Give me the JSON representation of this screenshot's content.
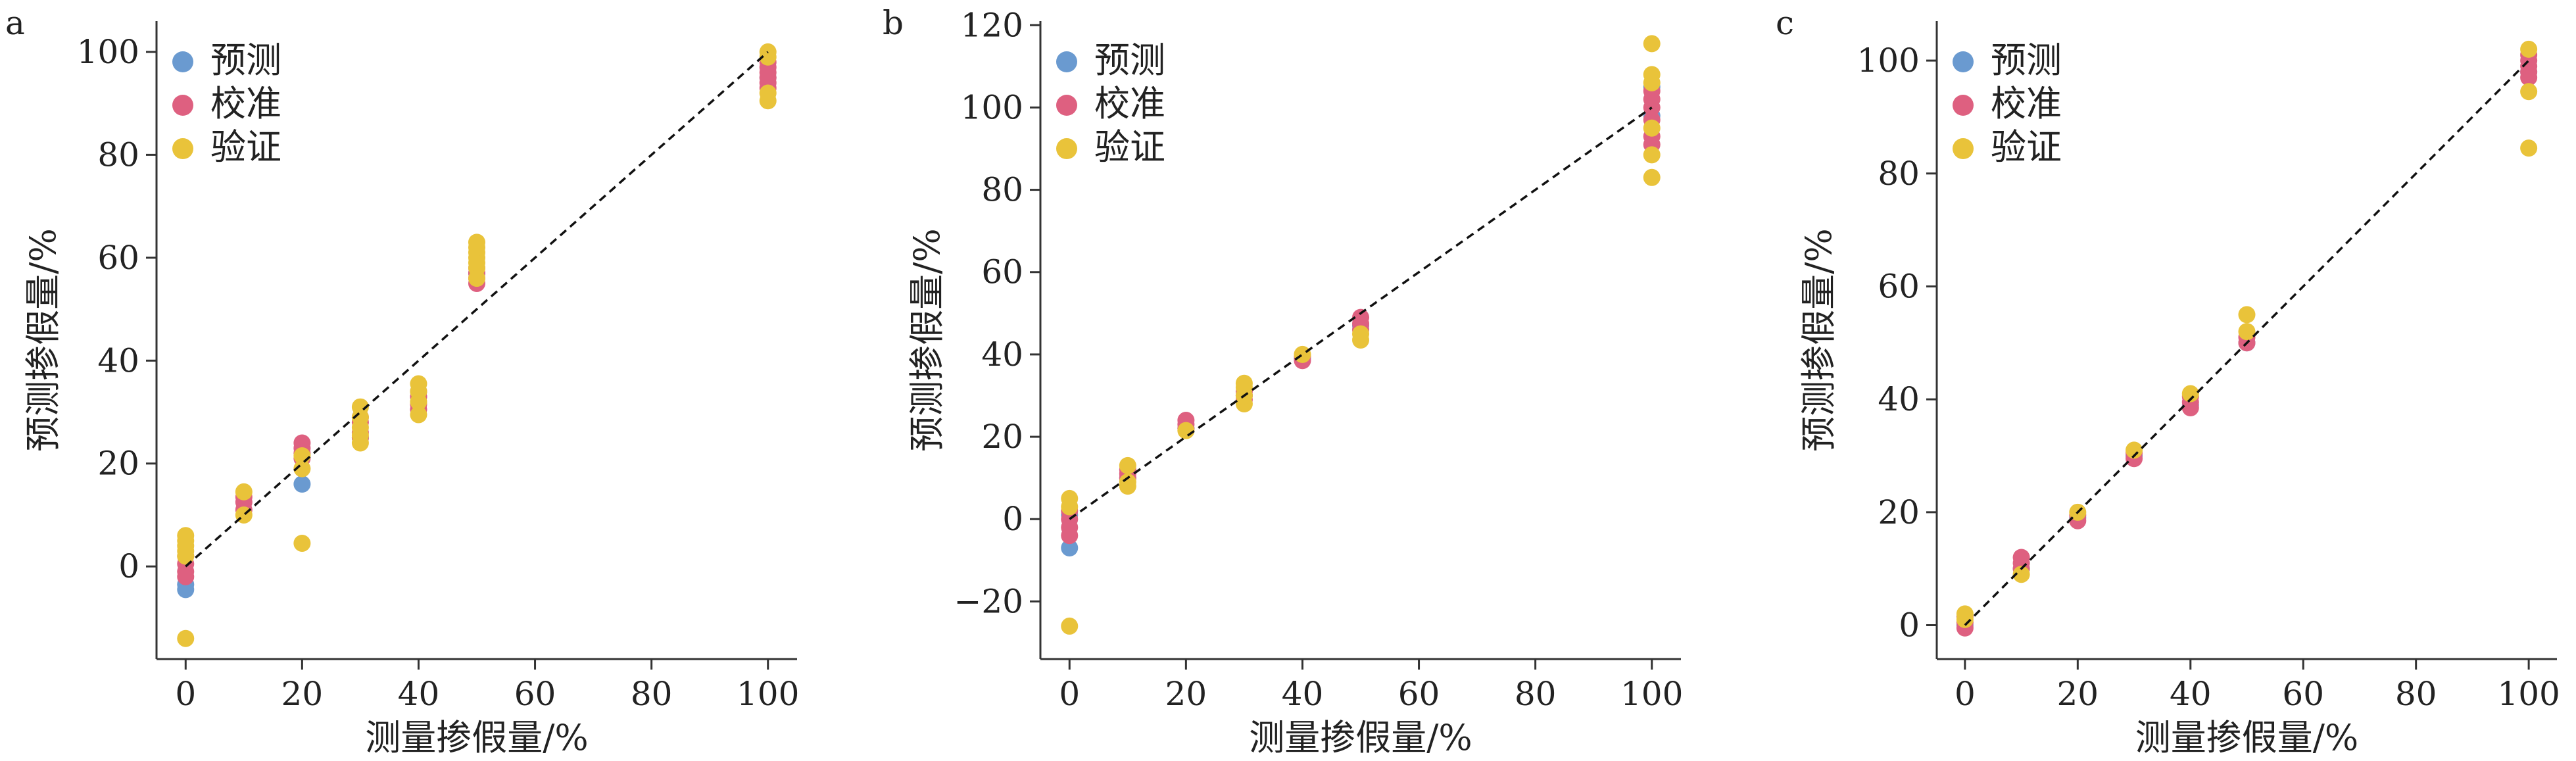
{
  "figure": {
    "legend_labels": [
      "预测",
      "校准",
      "验证"
    ],
    "colors": {
      "预测": "#6a9ad0",
      "校准": "#de6080",
      "验证": "#e9c33a"
    }
  },
  "chart_data": [
    {
      "panel": "a",
      "type": "scatter",
      "xlabel": "测量掺假量/%",
      "ylabel": "预测掺假量/%",
      "xlim": [
        -5,
        105
      ],
      "ylim": [
        -18,
        106
      ],
      "xticks": [
        0,
        20,
        40,
        60,
        80,
        100
      ],
      "yticks": [
        0,
        20,
        40,
        60,
        80,
        100
      ],
      "reference_line": [
        [
          0,
          0
        ],
        [
          100,
          100
        ]
      ],
      "series": [
        {
          "name": "预测",
          "points": [
            [
              0,
              -4.5
            ],
            [
              0,
              -3.5
            ],
            [
              20,
              16
            ],
            [
              30,
              25
            ],
            [
              40,
              33
            ],
            [
              50,
              57
            ],
            [
              100,
              95
            ]
          ]
        },
        {
          "name": "校准",
          "points": [
            [
              0,
              -1
            ],
            [
              0,
              0.5
            ],
            [
              0,
              2
            ],
            [
              0,
              -2
            ],
            [
              10,
              11
            ],
            [
              10,
              12.5
            ],
            [
              10,
              13.5
            ],
            [
              20,
              21
            ],
            [
              20,
              22
            ],
            [
              20,
              23
            ],
            [
              20,
              24
            ],
            [
              30,
              25
            ],
            [
              30,
              26
            ],
            [
              30,
              28
            ],
            [
              30,
              29
            ],
            [
              40,
              30.5
            ],
            [
              40,
              31.5
            ],
            [
              40,
              33
            ],
            [
              40,
              34
            ],
            [
              50,
              55
            ],
            [
              50,
              56
            ],
            [
              50,
              57
            ],
            [
              50,
              58
            ],
            [
              100,
              93
            ],
            [
              100,
              94
            ],
            [
              100,
              95
            ],
            [
              100,
              96
            ],
            [
              100,
              97
            ],
            [
              100,
              98
            ]
          ]
        },
        {
          "name": "验证",
          "points": [
            [
              0,
              -14
            ],
            [
              0,
              2
            ],
            [
              0,
              3
            ],
            [
              0,
              4
            ],
            [
              0,
              5
            ],
            [
              0,
              6
            ],
            [
              10,
              10
            ],
            [
              10,
              14.5
            ],
            [
              20,
              4.5
            ],
            [
              20,
              19
            ],
            [
              20,
              21.5
            ],
            [
              30,
              24
            ],
            [
              30,
              25.5
            ],
            [
              30,
              27
            ],
            [
              30,
              29
            ],
            [
              30,
              31
            ],
            [
              40,
              29.5
            ],
            [
              40,
              32
            ],
            [
              40,
              34
            ],
            [
              40,
              35.5
            ],
            [
              50,
              56
            ],
            [
              50,
              58
            ],
            [
              50,
              59
            ],
            [
              50,
              60
            ],
            [
              50,
              61
            ],
            [
              50,
              62
            ],
            [
              50,
              63
            ],
            [
              100,
              90.5
            ],
            [
              100,
              92
            ],
            [
              100,
              99
            ],
            [
              100,
              100
            ]
          ]
        }
      ]
    },
    {
      "panel": "b",
      "type": "scatter",
      "xlabel": "测量掺假量/%",
      "ylabel": "预测掺假量/%",
      "xlim": [
        -5,
        105
      ],
      "ylim": [
        -34,
        121
      ],
      "xticks": [
        0,
        20,
        40,
        60,
        80,
        100
      ],
      "yticks": [
        -20,
        0,
        20,
        40,
        60,
        80,
        100,
        120
      ],
      "reference_line": [
        [
          0,
          0
        ],
        [
          100,
          100
        ]
      ],
      "series": [
        {
          "name": "预测",
          "points": [
            [
              0,
              -7
            ],
            [
              0,
              1
            ],
            [
              10,
              10
            ],
            [
              20,
              22
            ],
            [
              30,
              30
            ],
            [
              40,
              39
            ],
            [
              50,
              47
            ],
            [
              100,
              105
            ],
            [
              100,
              98
            ]
          ]
        },
        {
          "name": "校准",
          "points": [
            [
              0,
              -4
            ],
            [
              0,
              -2
            ],
            [
              0,
              0
            ],
            [
              0,
              2
            ],
            [
              10,
              10
            ],
            [
              10,
              11
            ],
            [
              10,
              12
            ],
            [
              20,
              22
            ],
            [
              20,
              23
            ],
            [
              20,
              24
            ],
            [
              30,
              29
            ],
            [
              30,
              30
            ],
            [
              30,
              31
            ],
            [
              40,
              38.5
            ],
            [
              40,
              39.5
            ],
            [
              50,
              46
            ],
            [
              50,
              47.5
            ],
            [
              50,
              49
            ],
            [
              100,
              91
            ],
            [
              100,
              93
            ],
            [
              100,
              97
            ],
            [
              100,
              100
            ],
            [
              100,
              102
            ],
            [
              100,
              104
            ]
          ]
        },
        {
          "name": "验证",
          "points": [
            [
              0,
              -26
            ],
            [
              0,
              3
            ],
            [
              0,
              5
            ],
            [
              10,
              8
            ],
            [
              10,
              9
            ],
            [
              10,
              13
            ],
            [
              20,
              21.5
            ],
            [
              30,
              28
            ],
            [
              30,
              30
            ],
            [
              30,
              32
            ],
            [
              30,
              33
            ],
            [
              40,
              40
            ],
            [
              50,
              43.5
            ],
            [
              50,
              45
            ],
            [
              100,
              83
            ],
            [
              100,
              88.5
            ],
            [
              100,
              95
            ],
            [
              100,
              106
            ],
            [
              100,
              108
            ],
            [
              100,
              115.5
            ]
          ]
        }
      ]
    },
    {
      "panel": "c",
      "type": "scatter",
      "xlabel": "测量掺假量/%",
      "ylabel": "预测掺假量/%",
      "xlim": [
        -5,
        105
      ],
      "ylim": [
        -6,
        107
      ],
      "xticks": [
        0,
        20,
        40,
        60,
        80,
        100
      ],
      "yticks": [
        0,
        20,
        40,
        60,
        80,
        100
      ],
      "reference_line": [
        [
          0,
          0
        ],
        [
          100,
          100
        ]
      ],
      "series": [
        {
          "name": "预测",
          "points": [
            [
              0,
              0
            ],
            [
              10,
              10
            ],
            [
              20,
              19
            ],
            [
              30,
              30
            ],
            [
              40,
              39
            ],
            [
              50,
              50
            ],
            [
              100,
              98
            ]
          ]
        },
        {
          "name": "校准",
          "points": [
            [
              0,
              -0.5
            ],
            [
              0,
              0.5
            ],
            [
              0,
              1.5
            ],
            [
              10,
              10
            ],
            [
              10,
              11
            ],
            [
              10,
              12
            ],
            [
              20,
              18.5
            ],
            [
              20,
              19.5
            ],
            [
              30,
              29.5
            ],
            [
              30,
              30.5
            ],
            [
              40,
              38.5
            ],
            [
              40,
              39.5
            ],
            [
              40,
              40.5
            ],
            [
              50,
              50
            ],
            [
              50,
              51
            ],
            [
              100,
              97
            ],
            [
              100,
              98
            ],
            [
              100,
              99
            ],
            [
              100,
              100
            ],
            [
              100,
              101
            ]
          ]
        },
        {
          "name": "验证",
          "points": [
            [
              0,
              1
            ],
            [
              0,
              2
            ],
            [
              10,
              9
            ],
            [
              20,
              20
            ],
            [
              30,
              31
            ],
            [
              40,
              41
            ],
            [
              50,
              52
            ],
            [
              50,
              55
            ],
            [
              100,
              84.5
            ],
            [
              100,
              94.5
            ],
            [
              100,
              102
            ]
          ]
        }
      ]
    }
  ]
}
